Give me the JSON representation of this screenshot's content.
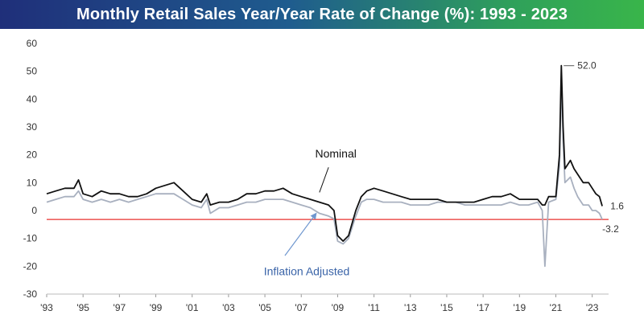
{
  "title": "Monthly Retail Sales Year/Year Rate of Change (%): 1993 - 2023",
  "colors": {
    "nominal": "#111111",
    "inflation_adjusted": "#a8b0bf",
    "reference_line": "#e8302e",
    "inflation_label": "#3a64a8",
    "annotation_arrow": "#6f97cf"
  },
  "chart_data": {
    "type": "line",
    "ylim": [
      -30,
      60
    ],
    "yticks": [
      60,
      50,
      40,
      30,
      20,
      10,
      0,
      -10,
      -20,
      -30
    ],
    "xlim": [
      1993,
      2023.9
    ],
    "xtick_years": [
      1993,
      1995,
      1997,
      1999,
      2001,
      2003,
      2005,
      2007,
      2009,
      2011,
      2013,
      2015,
      2017,
      2019,
      2021,
      2023
    ],
    "xtick_labels": [
      "'93",
      "'95",
      "'97",
      "'99",
      "'01",
      "'03",
      "'05",
      "'07",
      "'09",
      "'11",
      "'13",
      "'15",
      "'17",
      "'19",
      "'21",
      "'23"
    ],
    "grid": false,
    "reference_line": {
      "y": -3.2,
      "label": "-3.2"
    },
    "series": [
      {
        "name": "Nominal",
        "x": [
          1993.0,
          1993.5,
          1994.0,
          1994.5,
          1994.75,
          1995.0,
          1995.5,
          1996.0,
          1996.5,
          1997.0,
          1997.5,
          1998.0,
          1998.5,
          1999.0,
          1999.5,
          2000.0,
          2000.5,
          2001.0,
          2001.5,
          2001.8,
          2002.0,
          2002.5,
          2003.0,
          2003.5,
          2004.0,
          2004.5,
          2005.0,
          2005.5,
          2006.0,
          2006.5,
          2007.0,
          2007.5,
          2008.0,
          2008.5,
          2008.8,
          2009.0,
          2009.3,
          2009.6,
          2010.0,
          2010.3,
          2010.6,
          2011.0,
          2011.5,
          2012.0,
          2012.5,
          2013.0,
          2013.5,
          2014.0,
          2014.5,
          2015.0,
          2015.5,
          2016.0,
          2016.5,
          2017.0,
          2017.5,
          2018.0,
          2018.5,
          2019.0,
          2019.5,
          2020.0,
          2020.25,
          2020.4,
          2020.6,
          2021.0,
          2021.2,
          2021.3,
          2021.4,
          2021.5,
          2021.8,
          2022.0,
          2022.2,
          2022.5,
          2022.8,
          2023.0,
          2023.2,
          2023.4,
          2023.55
        ],
        "values": [
          6,
          7,
          8,
          8,
          11,
          6,
          5,
          7,
          6,
          6,
          5,
          5,
          6,
          8,
          9,
          10,
          7,
          4,
          3,
          6,
          2,
          3,
          3,
          4,
          6,
          6,
          7,
          7,
          8,
          6,
          5,
          4,
          3,
          2,
          0,
          -9,
          -11,
          -9,
          0,
          5,
          7,
          8,
          7,
          6,
          5,
          4,
          4,
          4,
          4,
          3,
          3,
          3,
          3,
          4,
          5,
          5,
          6,
          4,
          4,
          4,
          2,
          2,
          5,
          5,
          20,
          52,
          30,
          15,
          18,
          15,
          13,
          10,
          10,
          8,
          6,
          5,
          1.6
        ],
        "end_label": "1.6",
        "peak_label": "52.0"
      },
      {
        "name": "Inflation Adjusted",
        "x": [
          1993.0,
          1993.5,
          1994.0,
          1994.5,
          1994.75,
          1995.0,
          1995.5,
          1996.0,
          1996.5,
          1997.0,
          1997.5,
          1998.0,
          1998.5,
          1999.0,
          1999.5,
          2000.0,
          2000.5,
          2001.0,
          2001.5,
          2001.8,
          2002.0,
          2002.5,
          2003.0,
          2003.5,
          2004.0,
          2004.5,
          2005.0,
          2005.5,
          2006.0,
          2006.5,
          2007.0,
          2007.5,
          2008.0,
          2008.5,
          2008.8,
          2009.0,
          2009.3,
          2009.6,
          2010.0,
          2010.3,
          2010.6,
          2011.0,
          2011.5,
          2012.0,
          2012.5,
          2013.0,
          2013.5,
          2014.0,
          2014.5,
          2015.0,
          2015.5,
          2016.0,
          2016.5,
          2017.0,
          2017.5,
          2018.0,
          2018.5,
          2019.0,
          2019.5,
          2020.0,
          2020.25,
          2020.4,
          2020.6,
          2021.0,
          2021.2,
          2021.3,
          2021.4,
          2021.5,
          2021.8,
          2022.0,
          2022.2,
          2022.5,
          2022.8,
          2023.0,
          2023.2,
          2023.4,
          2023.55
        ],
        "values": [
          3,
          4,
          5,
          5,
          7,
          4,
          3,
          4,
          3,
          4,
          3,
          4,
          5,
          6,
          6,
          6,
          4,
          2,
          1,
          4,
          -1,
          1,
          1,
          2,
          3,
          3,
          4,
          4,
          4,
          3,
          2,
          1,
          -1,
          -2,
          -3,
          -11,
          -12,
          -10,
          -2,
          3,
          4,
          4,
          3,
          3,
          3,
          2,
          2,
          2,
          3,
          3,
          3,
          2,
          2,
          2,
          2,
          2,
          3,
          2,
          2,
          3,
          0,
          -20,
          3,
          4,
          16,
          47,
          25,
          10,
          12,
          8,
          5,
          2,
          2,
          0,
          0,
          -1,
          -3.2
        ],
        "end_label": "-3.2"
      }
    ],
    "annotations": [
      {
        "text": "Nominal",
        "series": "Nominal"
      },
      {
        "text": "Inflation Adjusted",
        "series": "Inflation Adjusted"
      }
    ]
  }
}
